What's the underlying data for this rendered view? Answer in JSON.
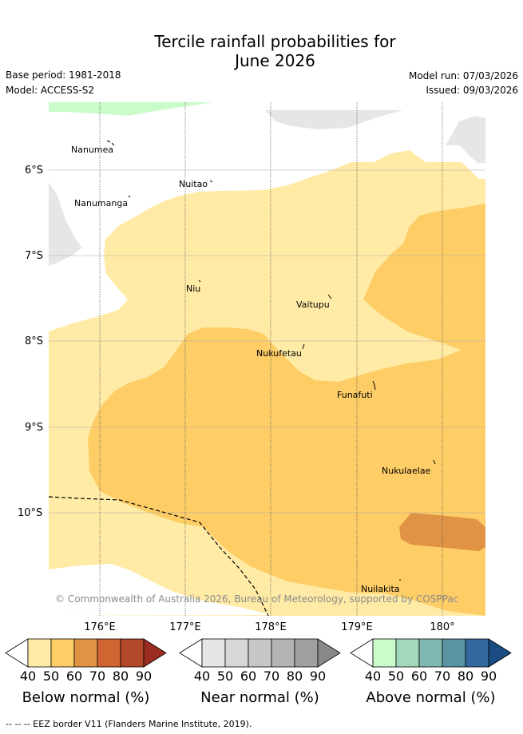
{
  "title_line1": "Tercile rainfall probabilities for",
  "title_line2": "June 2026",
  "meta": {
    "base_period": "Base period: 1981-2018",
    "model": "Model: ACCESS-S2",
    "model_run": "Model run: 07/03/2026",
    "issued": "Issued: 09/03/2026"
  },
  "y_ticks": [
    "6°S",
    "7°S",
    "8°S",
    "9°S",
    "10°S"
  ],
  "x_ticks": [
    "176°E",
    "177°E",
    "178°E",
    "179°E",
    "180°"
  ],
  "places": [
    "Nanumea",
    "Nuitao",
    "Nanumanga",
    "Niu",
    "Vaitupu",
    "Nukufetau",
    "Funafuti",
    "Nukulaelae",
    "Nuilakita"
  ],
  "copyright": "© Commonwealth of Australia 2026, Bureau of Meteorology, supported by COSPPac",
  "colorbars": [
    {
      "name": "below-normal",
      "title": "Below normal (%)",
      "labels": [
        "40",
        "50",
        "60",
        "70",
        "80",
        "90"
      ],
      "colors": [
        "#ffffff",
        "#ffeba5",
        "#fecd66",
        "#e09344",
        "#d06532",
        "#b1492a",
        "#9b2c22"
      ]
    },
    {
      "name": "near-normal",
      "title": "Near normal (%)",
      "labels": [
        "40",
        "50",
        "60",
        "70",
        "80",
        "90"
      ],
      "colors": [
        "#ffffff",
        "#e6e6e6",
        "#d7d7d7",
        "#c6c6c6",
        "#b4b4b4",
        "#a0a0a0",
        "#888888"
      ]
    },
    {
      "name": "above-normal",
      "title": "Above normal (%)",
      "labels": [
        "40",
        "50",
        "60",
        "70",
        "80",
        "90"
      ],
      "colors": [
        "#ffffff",
        "#c9fcca",
        "#a4d8bd",
        "#80b8b2",
        "#5a94a2",
        "#33699e",
        "#1a4b82"
      ]
    }
  ],
  "eez_legend": "-- -- -- EEZ border V11 (Flanders Marine Institute, 2019)."
}
